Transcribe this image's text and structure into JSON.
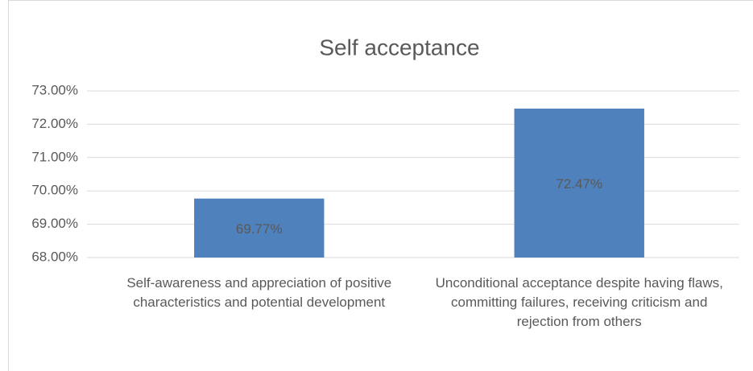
{
  "chart_data": {
    "type": "bar",
    "title": "Self acceptance",
    "categories": [
      "Self-awareness and appreciation of positive characteristics and potential development",
      "Unconditional acceptance despite having flaws, committing failures, receiving criticism and rejection from others"
    ],
    "values": [
      69.77,
      72.47
    ],
    "value_labels": [
      "69.77%",
      "72.47%"
    ],
    "color": "#4f81bd",
    "ylim": [
      68,
      73
    ],
    "yticks": [
      {
        "value": 68,
        "label": "68.00%"
      },
      {
        "value": 69,
        "label": "69.00%"
      },
      {
        "value": 70,
        "label": "70.00%"
      },
      {
        "value": 71,
        "label": "71.00%"
      },
      {
        "value": 72,
        "label": "72.00%"
      },
      {
        "value": 73,
        "label": "73.00%"
      }
    ],
    "grid": true
  }
}
